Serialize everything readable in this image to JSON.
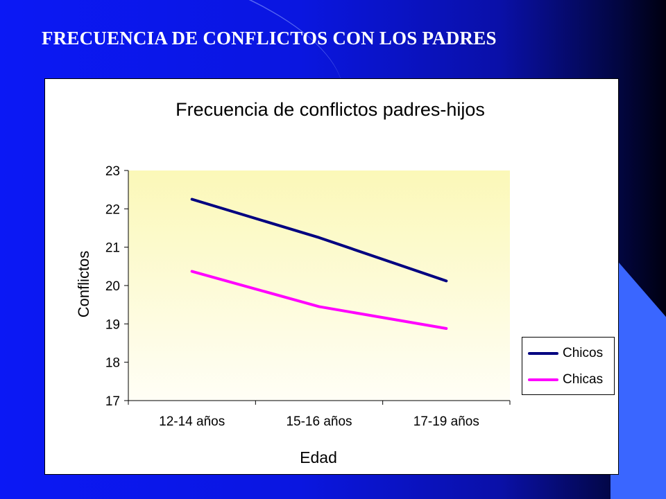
{
  "slide": {
    "title": "FRECUENCIA DE CONFLICTOS CON LOS PADRES"
  },
  "chart_data": {
    "type": "line",
    "title": "Frecuencia de conflictos padres-hijos",
    "xlabel": "Edad",
    "ylabel": "Conflictos",
    "categories": [
      "12-14 años",
      "15-16 años",
      "17-19 años"
    ],
    "ylim": [
      17,
      23
    ],
    "yticks": [
      "17",
      "18",
      "19",
      "20",
      "21",
      "22",
      "23"
    ],
    "grid": false,
    "plot_background": "#fdfbc9",
    "legend_position": "right",
    "series": [
      {
        "name": "Chicos",
        "color": "#000080",
        "values": [
          22.25,
          21.25,
          20.12
        ]
      },
      {
        "name": "Chicas",
        "color": "#ff00ff",
        "values": [
          20.37,
          19.45,
          18.88
        ]
      }
    ]
  }
}
